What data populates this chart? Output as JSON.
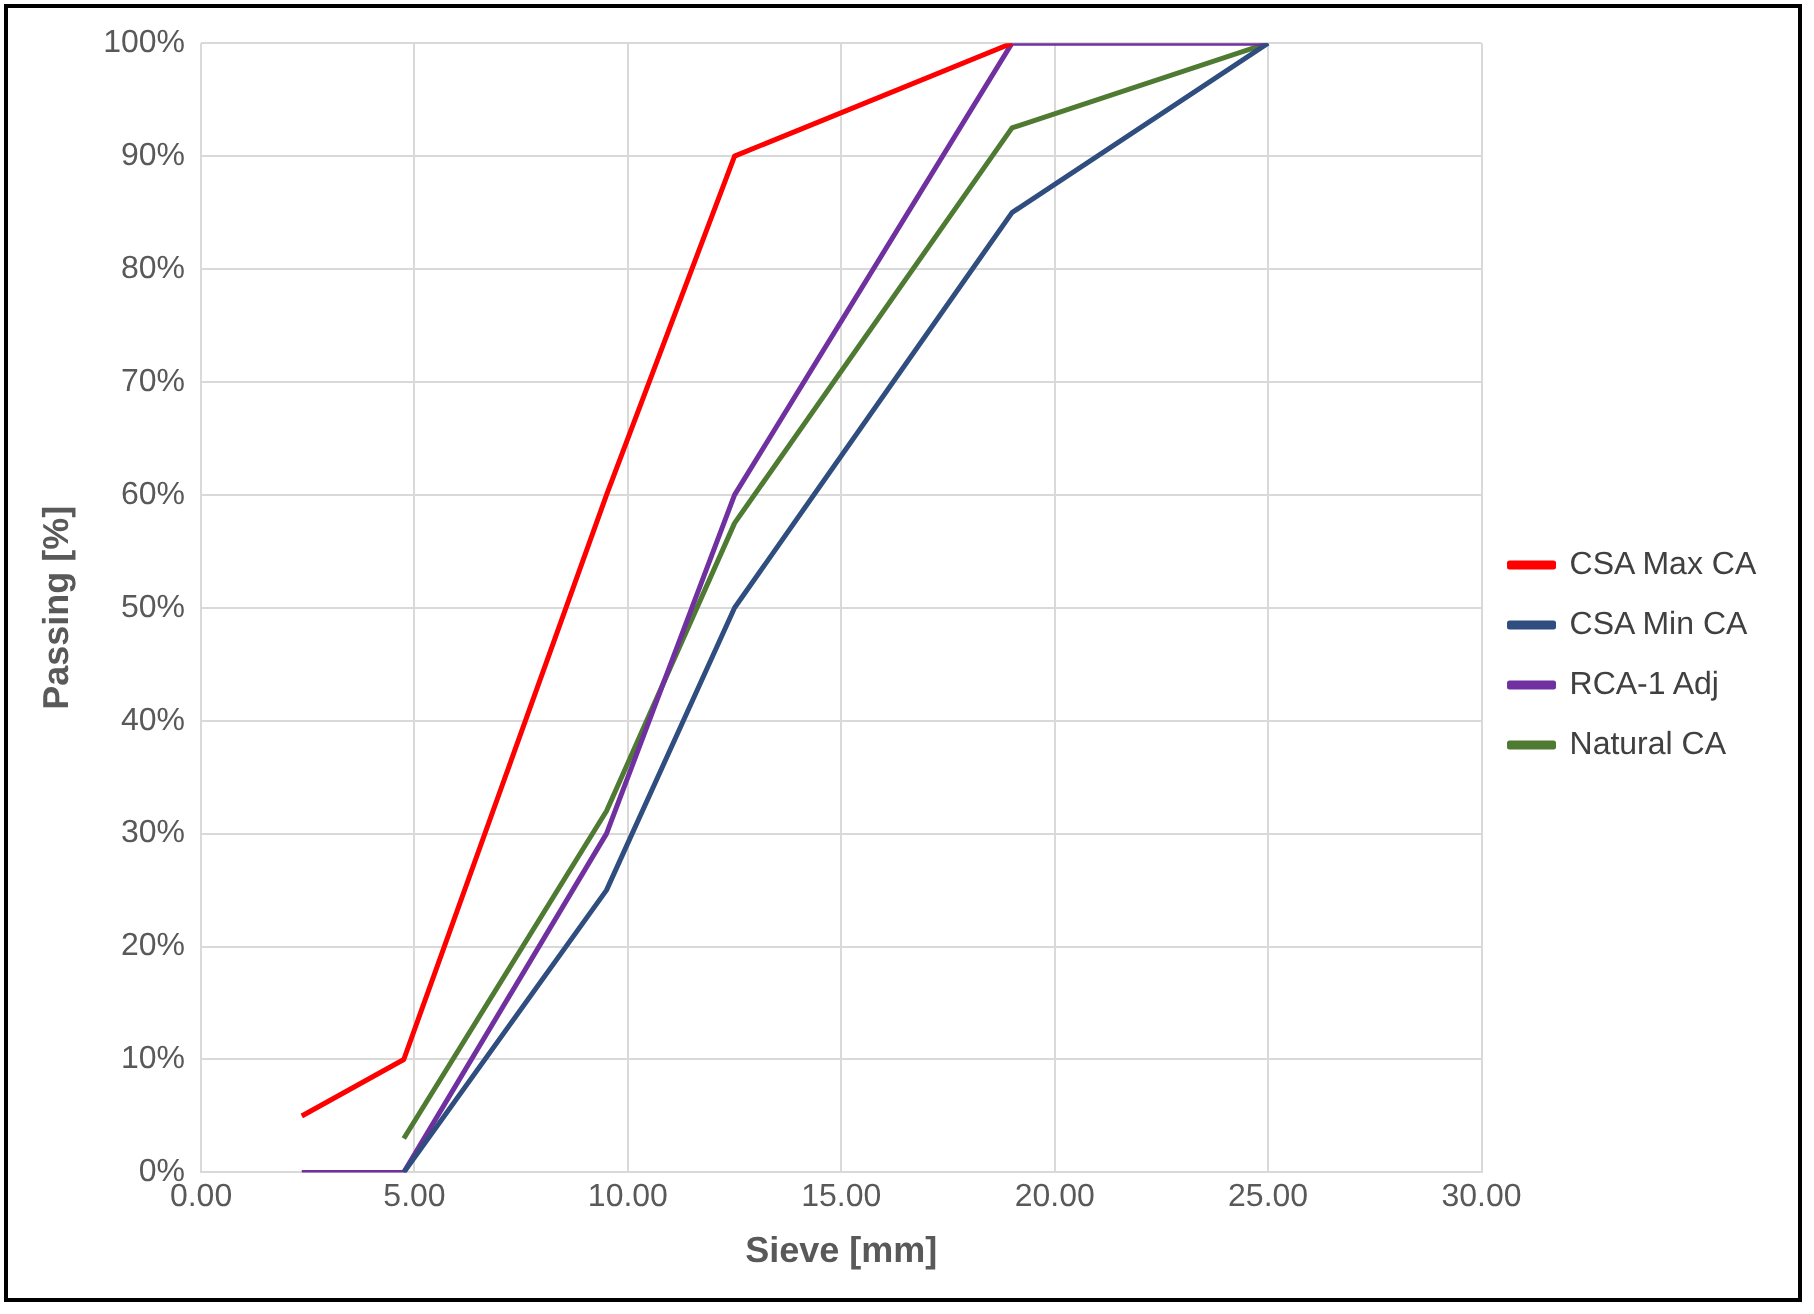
{
  "chart_data": {
    "type": "line",
    "xlabel": "Sieve [mm]",
    "ylabel": "Passing [%]",
    "series": [
      {
        "name": "CSA Max CA",
        "color": "#ff0000",
        "x": [
          2.36,
          4.75,
          9.5,
          12.5,
          19
        ],
        "values": [
          5,
          10,
          60,
          90,
          100
        ]
      },
      {
        "name": "CSA Min CA",
        "color": "#2f4d7e",
        "x": [
          4.75,
          9.5,
          12.5,
          19,
          25
        ],
        "values": [
          0,
          25,
          50,
          85,
          100
        ]
      },
      {
        "name": "RCA-1 Adj",
        "color": "#7030a0",
        "x": [
          2.36,
          4.75,
          9.5,
          12.5,
          19,
          25
        ],
        "values": [
          0,
          0,
          30,
          60,
          100,
          100
        ]
      },
      {
        "name": "Natural CA",
        "color": "#4e7a32",
        "x": [
          4.75,
          9.5,
          12.5,
          19,
          25
        ],
        "values": [
          3,
          32,
          57.5,
          92.5,
          100
        ]
      }
    ],
    "xlim": [
      0,
      30
    ],
    "xticks": [
      {
        "value": 0,
        "label": "0.00"
      },
      {
        "value": 5,
        "label": "5.00"
      },
      {
        "value": 10,
        "label": "10.00"
      },
      {
        "value": 15,
        "label": "15.00"
      },
      {
        "value": 20,
        "label": "20.00"
      },
      {
        "value": 25,
        "label": "25.00"
      },
      {
        "value": 30,
        "label": "30.00"
      }
    ],
    "ylim": [
      0,
      100
    ],
    "yticks": [
      {
        "value": 0,
        "label": "0%"
      },
      {
        "value": 10,
        "label": "10%"
      },
      {
        "value": 20,
        "label": "20%"
      },
      {
        "value": 30,
        "label": "30%"
      },
      {
        "value": 40,
        "label": "40%"
      },
      {
        "value": 50,
        "label": "50%"
      },
      {
        "value": 60,
        "label": "60%"
      },
      {
        "value": 70,
        "label": "70%"
      },
      {
        "value": 80,
        "label": "80%"
      },
      {
        "value": 90,
        "label": "90%"
      },
      {
        "value": 100,
        "label": "100%"
      }
    ],
    "grid": true,
    "legend": "right",
    "marker": "none",
    "line_style": "solid"
  }
}
